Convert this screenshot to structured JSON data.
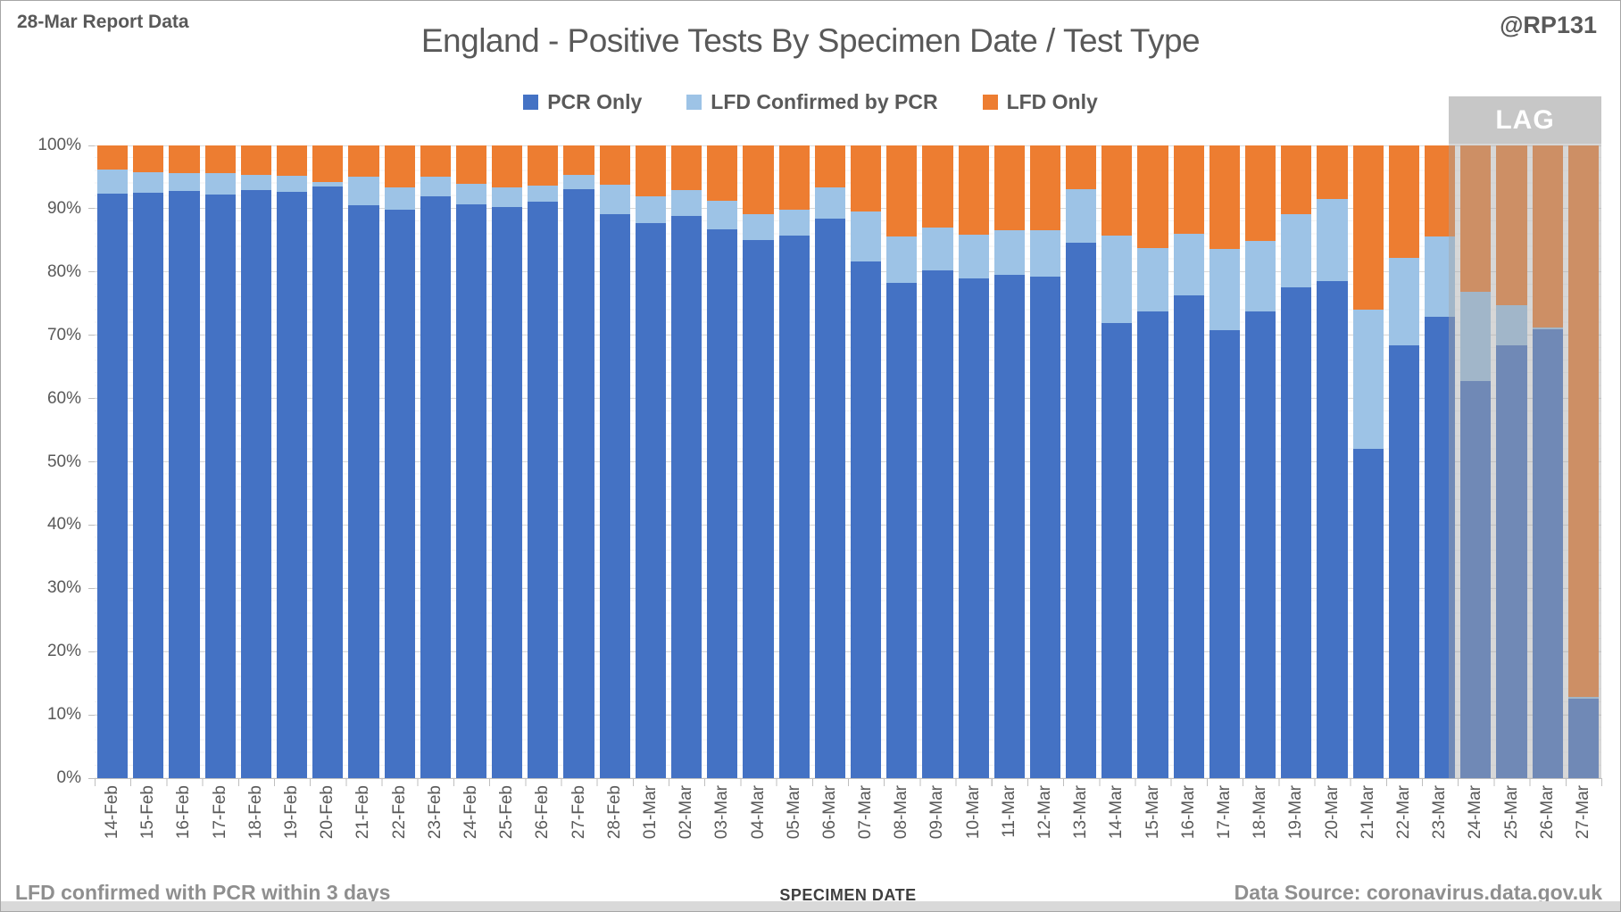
{
  "header": {
    "report_label": "28-Mar Report Data",
    "handle": "@RP131"
  },
  "title": "England - Positive Tests By Specimen Date / Test Type",
  "footer": {
    "note": "LFD confirmed with PCR within 3 days",
    "axis_title": "SPECIMEN DATE",
    "source": "Data Source: coronavirus.data.gov.uk"
  },
  "colors": {
    "pcr_only": "#4472C4",
    "lfd_confirmed": "#9DC3E6",
    "lfd_only": "#ED7D31",
    "text_gray": "#595959",
    "gridline": "#D9D9D9"
  },
  "chart_data": {
    "type": "bar",
    "stacked": true,
    "percent_stack": true,
    "title": "England - Positive Tests By Specimen Date / Test Type",
    "xlabel": "SPECIMEN DATE",
    "ylabel": "",
    "ylim": [
      0,
      100
    ],
    "y_ticks": [
      "0%",
      "10%",
      "20%",
      "30%",
      "40%",
      "50%",
      "60%",
      "70%",
      "80%",
      "90%",
      "100%"
    ],
    "grid": "horizontal, major every 10%, minor every 2%",
    "legend_position": "top-center",
    "categories": [
      "14-Feb",
      "15-Feb",
      "16-Feb",
      "17-Feb",
      "18-Feb",
      "19-Feb",
      "20-Feb",
      "21-Feb",
      "22-Feb",
      "23-Feb",
      "24-Feb",
      "25-Feb",
      "26-Feb",
      "27-Feb",
      "28-Feb",
      "01-Mar",
      "02-Mar",
      "03-Mar",
      "04-Mar",
      "05-Mar",
      "06-Mar",
      "07-Mar",
      "08-Mar",
      "09-Mar",
      "10-Mar",
      "11-Mar",
      "12-Mar",
      "13-Mar",
      "14-Mar",
      "15-Mar",
      "16-Mar",
      "17-Mar",
      "18-Mar",
      "19-Mar",
      "20-Mar",
      "21-Mar",
      "22-Mar",
      "23-Mar",
      "24-Mar",
      "25-Mar",
      "26-Mar",
      "27-Mar"
    ],
    "series": [
      {
        "name": "PCR Only",
        "color": "#4472C4",
        "values": [
          92.4,
          92.5,
          92.8,
          92.2,
          92.9,
          92.6,
          93.5,
          90.6,
          89.9,
          92.0,
          90.7,
          90.3,
          91.1,
          93.1,
          89.1,
          87.8,
          88.9,
          86.7,
          85.1,
          85.7,
          88.4,
          81.7,
          78.3,
          80.3,
          79.0,
          79.5,
          79.2,
          84.6,
          71.9,
          73.7,
          76.3,
          70.8,
          73.8,
          77.6,
          78.6,
          52.0,
          68.4,
          72.9,
          62.8,
          68.4,
          70.9,
          12.6
        ]
      },
      {
        "name": "LFD Confirmed by PCR",
        "color": "#9DC3E6",
        "values": [
          3.8,
          3.3,
          2.8,
          3.4,
          2.4,
          2.6,
          0.7,
          4.5,
          3.5,
          3.0,
          3.2,
          3.1,
          2.6,
          2.2,
          4.7,
          4.1,
          4.0,
          4.5,
          4.0,
          4.1,
          5.0,
          7.8,
          7.3,
          6.7,
          6.9,
          7.1,
          7.4,
          8.5,
          13.9,
          10.1,
          9.8,
          12.8,
          11.1,
          11.6,
          12.9,
          22.0,
          13.9,
          12.7,
          14.1,
          6.3,
          0.4,
          0.3
        ]
      },
      {
        "name": "LFD Only",
        "color": "#ED7D31",
        "values": [
          3.8,
          4.2,
          4.4,
          4.4,
          4.7,
          4.8,
          5.8,
          4.9,
          6.6,
          5.0,
          6.1,
          6.6,
          6.3,
          4.7,
          6.2,
          8.1,
          7.1,
          8.8,
          10.9,
          10.2,
          6.6,
          10.5,
          14.4,
          13.0,
          14.1,
          13.4,
          13.4,
          6.9,
          14.2,
          16.2,
          13.9,
          16.4,
          15.1,
          10.8,
          8.5,
          26.0,
          17.7,
          14.4,
          23.1,
          25.3,
          28.7,
          87.1
        ]
      }
    ],
    "lag": {
      "label": "LAG",
      "categories": [
        "24-Mar",
        "25-Mar",
        "26-Mar",
        "27-Mar"
      ],
      "start_index": 38
    }
  }
}
